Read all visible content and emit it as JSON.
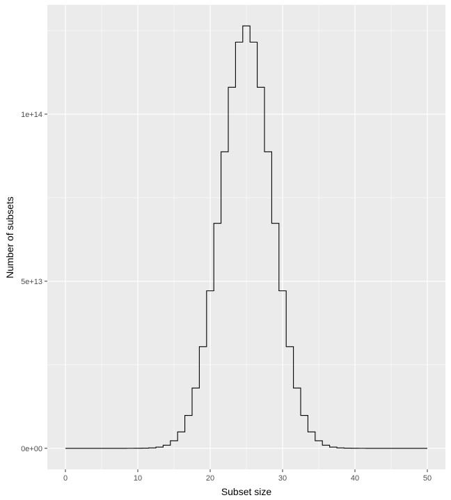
{
  "chart_data": {
    "type": "line",
    "title": "",
    "xlabel": "Subset size",
    "ylabel": "Number of subsets",
    "xlim": [
      -2.5,
      52.5
    ],
    "ylim": [
      -6300000000000.0,
      132700000000000.0
    ],
    "grid": true,
    "x_ticks": [
      {
        "value": 0,
        "label": "0"
      },
      {
        "value": 10,
        "label": "10"
      },
      {
        "value": 20,
        "label": "20"
      },
      {
        "value": 30,
        "label": "30"
      },
      {
        "value": 40,
        "label": "40"
      },
      {
        "value": 50,
        "label": "50"
      }
    ],
    "x_minor_ticks": [
      5,
      15,
      25,
      35,
      45
    ],
    "y_ticks": [
      {
        "value": 0,
        "label": "0e+00"
      },
      {
        "value": 50000000000000,
        "label": "5e+13"
      },
      {
        "value": 100000000000000,
        "label": "1e+14"
      }
    ],
    "y_minor_ticks": [
      25000000000000,
      75000000000000,
      125000000000000
    ],
    "line_color": "#000000",
    "series": [
      {
        "x": [
          0,
          1,
          2,
          3,
          4,
          5,
          6,
          7,
          8,
          9,
          10,
          11,
          12,
          13,
          14,
          15,
          16,
          17,
          18,
          19,
          20,
          21,
          22,
          23,
          24,
          25,
          26,
          27,
          28,
          29,
          30,
          31,
          32,
          33,
          34,
          35,
          36,
          37,
          38,
          39,
          40,
          41,
          42,
          43,
          44,
          45,
          46,
          47,
          48,
          49,
          50
        ],
        "values": [
          1,
          50,
          1225,
          19600,
          230300,
          2118760,
          15890700,
          99884400,
          536878650,
          2505433700,
          10272278170,
          37353738800,
          121399651100,
          354860518600,
          937845656300,
          2250829575120,
          4923689695575,
          9847379391150,
          18053528883775,
          30405943383200,
          47129212243960,
          67327446062800,
          88749815264600,
          108043253365600,
          121548660036300,
          126410606437752,
          121548660036300,
          108043253365600,
          88749815264600,
          67327446062800,
          47129212243960,
          30405943383200,
          18053528883775,
          9847379391150,
          4923689695575,
          2250829575120,
          937845656300,
          354860518600,
          121399651100,
          37353738800,
          10272278170,
          2505433700,
          536878650,
          99884400,
          15890700,
          2118760,
          230300,
          19600,
          1225,
          50,
          1
        ]
      }
    ]
  }
}
